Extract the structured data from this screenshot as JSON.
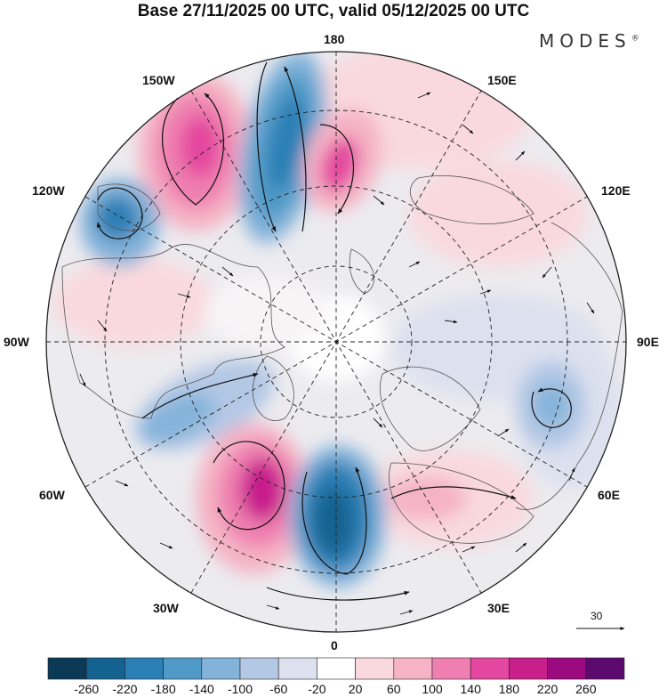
{
  "title": "Base 27/11/2025 00 UTC, valid 05/12/2025 00 UTC",
  "brand": {
    "name": "MODES",
    "mark": "®"
  },
  "longitude_labels": {
    "top": "180",
    "bottom": "0",
    "left": "90W",
    "right": "90E",
    "upper_left_outer": "120W",
    "upper_left_inner": "150W",
    "upper_right_inner": "150E",
    "upper_right_outer": "120E",
    "lower_left_outer": "60W",
    "lower_left_inner": "30W",
    "lower_right_inner": "30E",
    "lower_right_outer": "60E"
  },
  "reference_vector": {
    "value": "30"
  },
  "colorbar": {
    "ticks": [
      "-260",
      "-220",
      "-180",
      "-140",
      "-100",
      "-60",
      "-20",
      "20",
      "60",
      "100",
      "140",
      "180",
      "220",
      "260"
    ],
    "colors": [
      "#0b3a57",
      "#14628f",
      "#2a7fb5",
      "#4f9ac7",
      "#84b3da",
      "#b3c8e5",
      "#dde1ef",
      "#ffffff",
      "#f9d9de",
      "#f5b3c5",
      "#ef7fb0",
      "#e4479f",
      "#c81f8c",
      "#9b0a7f",
      "#5d0a6e"
    ]
  },
  "anomalies": [
    {
      "name": "gulf-of-alaska-negative",
      "value": -200
    },
    {
      "name": "bering-negative",
      "value": -180
    },
    {
      "name": "aleutian-positive",
      "value": 160
    },
    {
      "name": "east-siberia-positive",
      "value": 140
    },
    {
      "name": "north-atlantic-negative",
      "value": -120
    },
    {
      "name": "mid-atlantic-positive",
      "value": 220
    },
    {
      "name": "northeast-atlantic-negative",
      "value": -260
    },
    {
      "name": "europe-positive",
      "value": 60
    },
    {
      "name": "central-asia-negative",
      "value": -60
    }
  ]
}
